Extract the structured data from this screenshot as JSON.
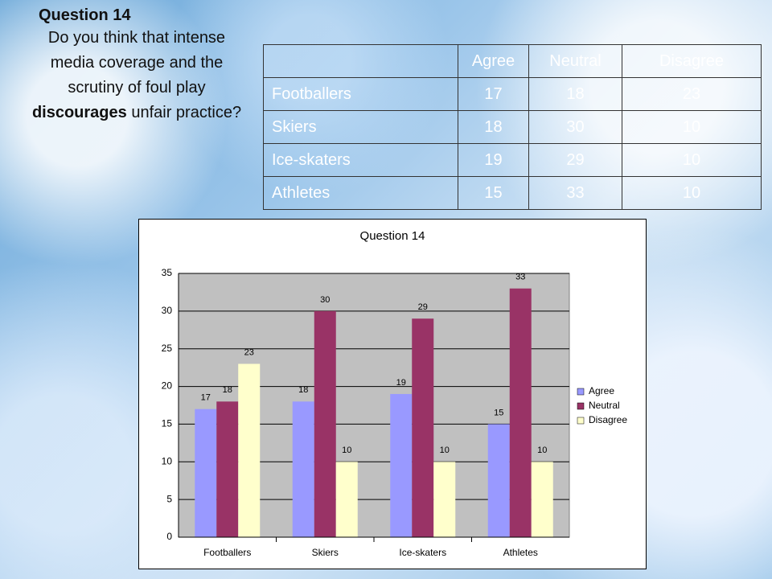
{
  "question": {
    "title": "Question 14",
    "text_parts": [
      "Do you think that intense media coverage and the scrutiny of foul play ",
      "discourages",
      " unfair practice?"
    ]
  },
  "table": {
    "columns": [
      "Agree",
      "Neutral",
      "Disagree"
    ],
    "rows": [
      [
        "Footballers",
        17,
        18,
        23
      ],
      [
        "Skiers",
        18,
        30,
        10
      ],
      [
        "Ice-skaters",
        19,
        29,
        10
      ],
      [
        "Athletes",
        15,
        33,
        10
      ]
    ]
  },
  "chart_data": {
    "type": "bar",
    "title": "Question 14",
    "categories": [
      "Footballers",
      "Skiers",
      "Ice-skaters",
      "Athletes"
    ],
    "series": [
      {
        "name": "Agree",
        "color": "#9999ff",
        "values": [
          17,
          18,
          19,
          15
        ]
      },
      {
        "name": "Neutral",
        "color": "#993366",
        "values": [
          18,
          30,
          29,
          33
        ]
      },
      {
        "name": "Disagree",
        "color": "#ffffcc",
        "values": [
          23,
          10,
          10,
          10
        ]
      }
    ],
    "ylim": [
      0,
      35
    ],
    "yticks": [
      0,
      5,
      10,
      15,
      20,
      25,
      30,
      35
    ],
    "grid": true,
    "legend": "right"
  }
}
